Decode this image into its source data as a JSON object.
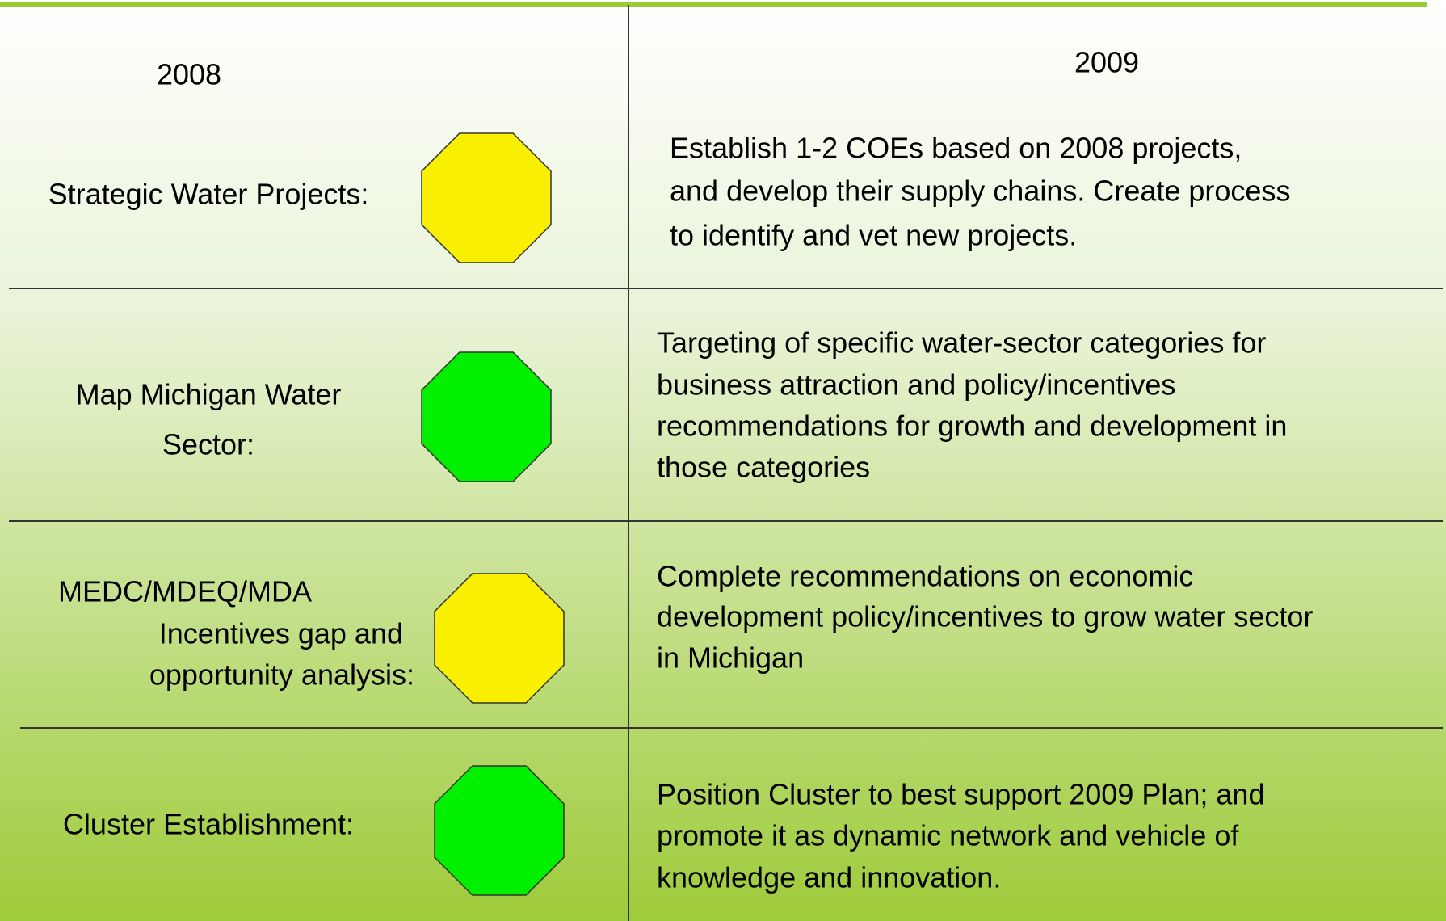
{
  "header": {
    "left": "2008",
    "right": "2009"
  },
  "rows": [
    {
      "label": [
        "Strategic Water Projects:"
      ],
      "color": "#f8f000",
      "plan": [
        "Establish 1-2  COEs based on 2008 projects,",
        "and develop their supply chains. Create process",
        "to identify and vet new projects."
      ]
    },
    {
      "label": [
        "Map Michigan Water",
        "Sector:"
      ],
      "color": "#00f000",
      "plan": [
        "Targeting of specific water-sector categories for",
        "business attraction and policy/incentives",
        "recommendations for growth and development in",
        "those categories"
      ]
    },
    {
      "label": [
        "MEDC/MDEQ/MDA",
        "Incentives gap and",
        "opportunity analysis:"
      ],
      "color": "#f8f000",
      "plan": [
        "Complete recommendations on economic",
        "development policy/incentives to grow water sector",
        "in Michigan"
      ]
    },
    {
      "label": [
        "Cluster Establishment:"
      ],
      "color": "#00f000",
      "plan": [
        "Position Cluster to best support 2009 Plan; and",
        "promote it as dynamic network and vehicle of",
        "knowledge and innovation."
      ]
    }
  ]
}
